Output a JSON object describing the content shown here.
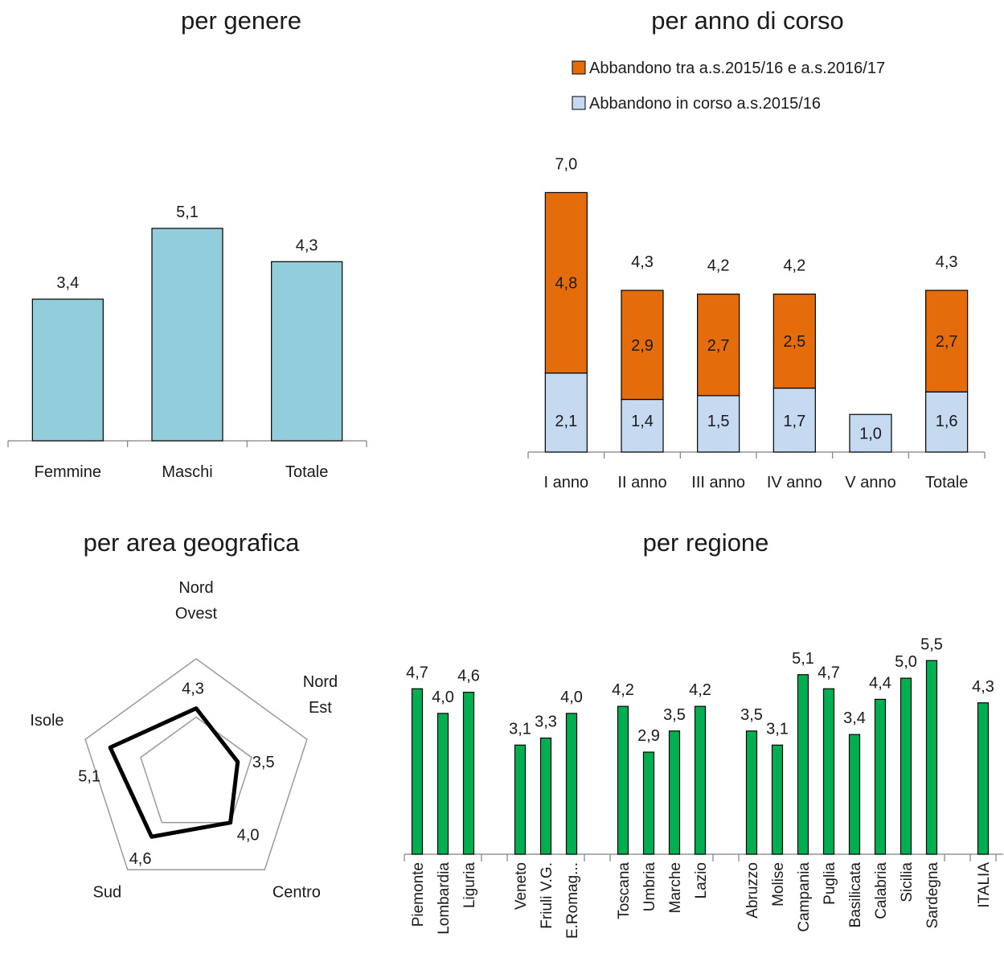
{
  "chart_data": [
    {
      "id": "gender",
      "type": "bar",
      "title": "per genere",
      "categories": [
        "Femmine",
        "Maschi",
        "Totale"
      ],
      "values": [
        3.4,
        5.1,
        4.3
      ],
      "value_labels": [
        "3,4",
        "5,1",
        "4,3"
      ],
      "ylim": [
        0,
        5.6
      ],
      "colors": {
        "bar": "#92cddc"
      },
      "grid": false
    },
    {
      "id": "year",
      "type": "bar",
      "stacked": true,
      "title": "per anno di corso",
      "categories": [
        "I anno",
        "II anno",
        "III anno",
        "IV anno",
        "V anno",
        "Totale"
      ],
      "series": [
        {
          "name": "Abbandono in corso a.s.2015/16",
          "values": [
            2.1,
            1.4,
            1.5,
            1.7,
            1.0,
            1.6
          ],
          "labels": [
            "2,1",
            "1,4",
            "1,5",
            "1,7",
            "1,0",
            "1,6"
          ],
          "color": "#c5d9f1"
        },
        {
          "name": "Abbandono tra a.s.2015/16 e a.s.2016/17",
          "values": [
            4.8,
            2.9,
            2.7,
            2.5,
            0,
            2.7
          ],
          "labels": [
            "4,8",
            "2,9",
            "2,7",
            "2,5",
            "",
            "2,7"
          ],
          "color": "#e46c0a"
        }
      ],
      "totals": [
        7.0,
        4.3,
        4.2,
        4.2,
        1.0,
        4.3
      ],
      "total_labels": [
        "7,0",
        "4,3",
        "4,2",
        "4,2",
        "",
        "4,3"
      ],
      "legend": {
        "placement": "top-right",
        "order": [
          "Abbandono tra a.s.2015/16 e a.s.2016/17",
          "Abbandono in corso a.s.2015/16"
        ]
      },
      "ylim": [
        0,
        7.7
      ],
      "grid": false
    },
    {
      "id": "area",
      "type": "radar",
      "title": "per area geografica",
      "axes": [
        {
          "label_lines": [
            "Nord",
            "Ovest"
          ],
          "value": 4.3,
          "value_label": "4,3"
        },
        {
          "label_lines": [
            "Nord",
            "Est"
          ],
          "value": 3.5,
          "value_label": "3,5"
        },
        {
          "label_lines": [
            "Centro"
          ],
          "value": 4.0,
          "value_label": "4,0"
        },
        {
          "label_lines": [
            "Sud"
          ],
          "value": 4.6,
          "value_label": "4,6"
        },
        {
          "label_lines": [
            "Isole"
          ],
          "value": 5.1,
          "value_label": "5,1"
        }
      ],
      "rlim": [
        2,
        6
      ],
      "grid_levels": [
        2,
        4,
        6
      ],
      "colors": {
        "line": "#000000",
        "grid": "#999999"
      }
    },
    {
      "id": "region",
      "type": "bar",
      "title": "per regione",
      "groups": [
        [
          {
            "name": "Piemonte",
            "value": 4.7,
            "label": "4,7"
          },
          {
            "name": "Lombardia",
            "value": 4.0,
            "label": "4,0"
          },
          {
            "name": "Liguria",
            "value": 4.6,
            "label": "4,6"
          }
        ],
        [
          {
            "name": "Veneto",
            "value": 3.1,
            "label": "3,1"
          },
          {
            "name": "Friuli V.G.",
            "value": 3.3,
            "label": "3,3"
          },
          {
            "name": "E.Romag...",
            "value": 4.0,
            "label": "4,0"
          }
        ],
        [
          {
            "name": "Toscana",
            "value": 4.2,
            "label": "4,2"
          },
          {
            "name": "Umbria",
            "value": 2.9,
            "label": "2,9"
          },
          {
            "name": "Marche",
            "value": 3.5,
            "label": "3,5"
          },
          {
            "name": "Lazio",
            "value": 4.2,
            "label": "4,2"
          }
        ],
        [
          {
            "name": "Abruzzo",
            "value": 3.5,
            "label": "3,5"
          },
          {
            "name": "Molise",
            "value": 3.1,
            "label": "3,1"
          },
          {
            "name": "Campania",
            "value": 5.1,
            "label": "5,1"
          },
          {
            "name": "Puglia",
            "value": 4.7,
            "label": "4,7"
          },
          {
            "name": "Basilicata",
            "value": 3.4,
            "label": "3,4"
          },
          {
            "name": "Calabria",
            "value": 4.4,
            "label": "4,4"
          },
          {
            "name": "Sicilia",
            "value": 5.0,
            "label": "5,0"
          },
          {
            "name": "Sardegna",
            "value": 5.5,
            "label": "5,5"
          }
        ],
        [
          {
            "name": "ITALIA",
            "value": 4.3,
            "label": "4,3"
          }
        ]
      ],
      "ylim": [
        0,
        6.1
      ],
      "colors": {
        "bar": "#00b050"
      },
      "grid": false
    }
  ]
}
